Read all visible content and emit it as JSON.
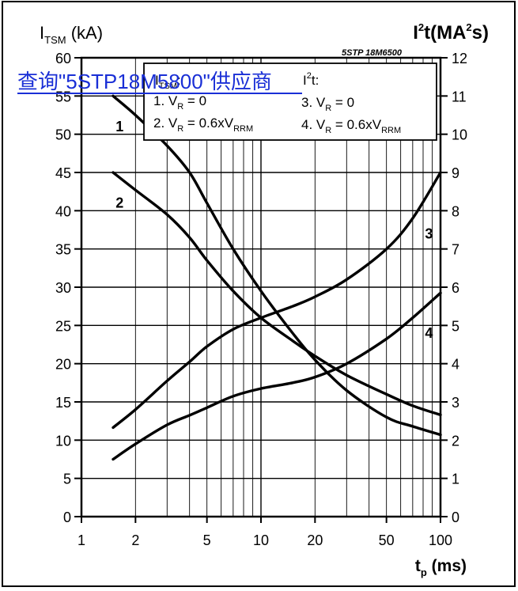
{
  "overlay_link": "查询\"5STP18M5800\"供应商",
  "part_label": "5STP 18M6500",
  "chart_data": {
    "type": "line",
    "title": "",
    "x_axis": {
      "label_main": "t",
      "label_sub": "p",
      "label_unit": " (ms)",
      "scale": "log",
      "range": [
        1,
        100
      ],
      "ticks": [
        1,
        2,
        5,
        10,
        20,
        50,
        100
      ]
    },
    "y_left": {
      "label_main": "I",
      "label_sub": "TSM",
      "label_unit": " (kA)",
      "range": [
        0,
        60
      ],
      "ticks": [
        0,
        5,
        10,
        15,
        20,
        25,
        30,
        35,
        40,
        45,
        50,
        55,
        60
      ]
    },
    "y_right": {
      "label_main": "I",
      "label_sup1": "2",
      "label_mid": "t(MA",
      "label_sup2": "2",
      "label_end": "s)",
      "range": [
        0,
        12
      ],
      "ticks": [
        0,
        1,
        2,
        3,
        4,
        5,
        6,
        7,
        8,
        9,
        10,
        11,
        12
      ]
    },
    "legend": {
      "placement": "top-center",
      "col1_header": "I",
      "col1_header_sub": "TSM",
      "col1_header_end": ":",
      "col2_header": "I",
      "col2_header_sup": "2",
      "col2_header_end": "t:",
      "entries": [
        {
          "main": "1. V",
          "sub": "R",
          "tail": " = 0",
          "tail_sub": ""
        },
        {
          "main": "2. V",
          "sub": "R",
          "tail": " = 0.6xV",
          "tail_sub": "RRM"
        },
        {
          "main": "3. V",
          "sub": "R",
          "tail": " = 0",
          "tail_sub": ""
        },
        {
          "main": "4. V",
          "sub": "R",
          "tail": " = 0.6xV",
          "tail_sub": "RRM"
        }
      ]
    },
    "grid": true,
    "series": [
      {
        "name": "1",
        "axis": "left",
        "x": [
          1.5,
          2,
          3,
          4,
          5,
          7,
          10,
          15,
          20,
          30,
          50,
          70,
          100
        ],
        "y": [
          55,
          52.5,
          48.5,
          45,
          41,
          35,
          29.5,
          24,
          20.5,
          16.5,
          13,
          11.8,
          10.7
        ]
      },
      {
        "name": "2",
        "axis": "left",
        "x": [
          1.5,
          2,
          3,
          4,
          5,
          7,
          10,
          15,
          20,
          30,
          50,
          70,
          100
        ],
        "y": [
          45,
          42.7,
          39.5,
          36.5,
          33.5,
          29.5,
          26,
          23,
          21,
          18.5,
          16,
          14.5,
          13.3
        ]
      },
      {
        "name": "3",
        "axis": "right",
        "x": [
          1.5,
          2,
          3,
          4,
          5,
          7,
          10,
          15,
          20,
          30,
          50,
          70,
          100
        ],
        "y": [
          2.33,
          2.8,
          3.55,
          4.05,
          4.45,
          4.9,
          5.2,
          5.5,
          5.75,
          6.2,
          7.0,
          7.8,
          9.0
        ]
      },
      {
        "name": "4",
        "axis": "right",
        "x": [
          1.5,
          2,
          3,
          4,
          5,
          7,
          10,
          15,
          20,
          30,
          50,
          70,
          100
        ],
        "y": [
          1.5,
          1.9,
          2.4,
          2.65,
          2.85,
          3.15,
          3.35,
          3.5,
          3.65,
          4.0,
          4.65,
          5.2,
          5.85
        ]
      }
    ],
    "curve_labels": [
      {
        "text": "1",
        "x": 1.55,
        "y": 51
      },
      {
        "text": "2",
        "x": 1.55,
        "y": 41
      },
      {
        "text": "3",
        "x": 82,
        "y": 37
      },
      {
        "text": "4",
        "x": 82,
        "y": 24
      }
    ]
  }
}
